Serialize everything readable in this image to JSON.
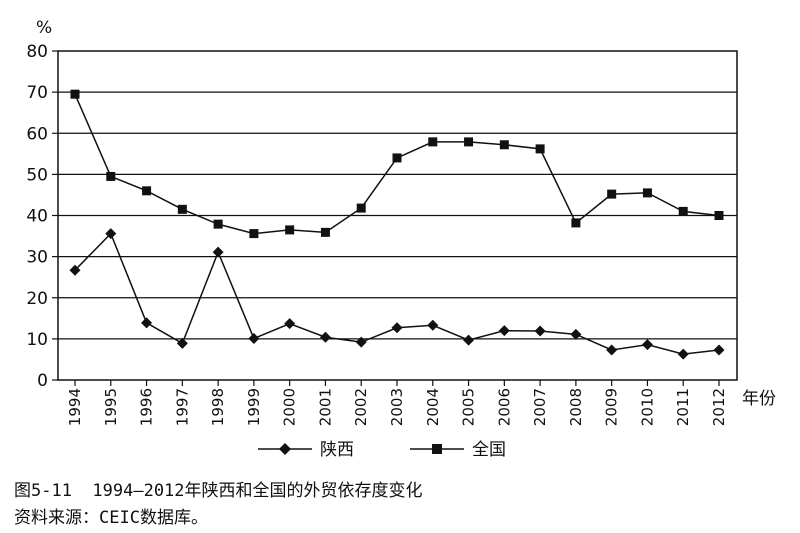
{
  "chart_data": {
    "type": "line",
    "ylabel": "%",
    "xlabel": "年份",
    "ylim": [
      0,
      80
    ],
    "yticks": [
      0,
      10,
      20,
      30,
      40,
      50,
      60,
      70,
      80
    ],
    "grid": "horizontal",
    "legend_position": "bottom-center",
    "categories": [
      "1994",
      "1995",
      "1996",
      "1997",
      "1998",
      "1999",
      "2000",
      "2001",
      "2002",
      "2003",
      "2004",
      "2005",
      "2006",
      "2007",
      "2008",
      "2009",
      "2010",
      "2011",
      "2012"
    ],
    "series": [
      {
        "name": "陕西",
        "marker": "diamond",
        "values": [
          26.7,
          35.6,
          13.9,
          8.9,
          31.1,
          10.1,
          13.7,
          10.4,
          9.2,
          12.7,
          13.3,
          9.7,
          12.0,
          11.9,
          11.1,
          7.3,
          8.6,
          6.3,
          7.3
        ]
      },
      {
        "name": "全国",
        "marker": "square",
        "values": [
          69.5,
          49.5,
          46.0,
          41.5,
          37.9,
          35.6,
          36.5,
          35.9,
          41.8,
          54.0,
          57.9,
          57.9,
          57.2,
          56.2,
          38.2,
          45.2,
          45.5,
          41.0,
          40.0
        ]
      }
    ]
  },
  "caption": {
    "line1": "图5-11  1994—2012年陕西和全国的外贸依存度变化",
    "line2": "资料来源：CEIC数据库。"
  }
}
